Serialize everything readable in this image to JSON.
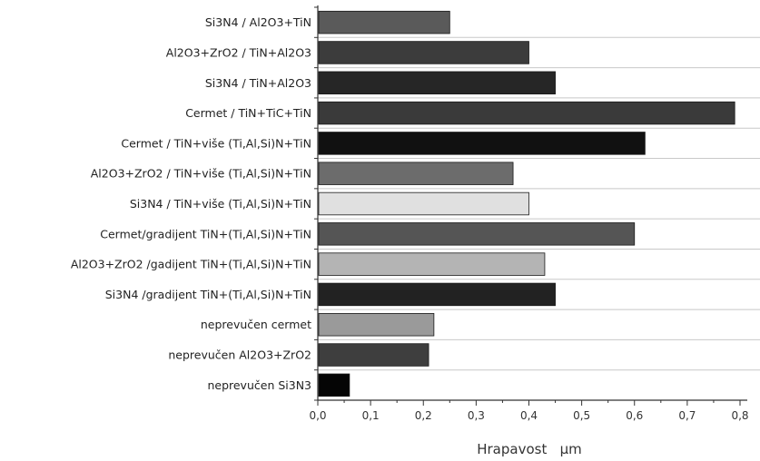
{
  "chart_data": {
    "type": "bar",
    "orientation": "horizontal",
    "title": "",
    "xlabel": "Hrapavost   μm",
    "ylabel": "",
    "xlim": [
      0,
      0.8
    ],
    "x_ticks": [
      "0,0",
      "0,1",
      "0,2",
      "0,3",
      "0,4",
      "0,5",
      "0,6",
      "0,7",
      "0,8"
    ],
    "grid": "horizontal lines between categories",
    "legend": "none",
    "categories": [
      "Si3N4 / Al2O3+TiN",
      "Al2O3+ZrO2 / TiN+Al2O3",
      "Si3N4 / TiN+Al2O3",
      "Cermet / TiN+TiC+TiN",
      "Cermet  / TiN+više  (Ti,Al,Si)N+TiN",
      "Al2O3+ZrO2 / TiN+više (Ti,Al,Si)N+TiN",
      "Si3N4 / TiN+više  (Ti,Al,Si)N+TiN",
      "Cermet/gradijent TiN+(Ti,Al,Si)N+TiN",
      "Al2O3+ZrO2 /gadijent TiN+(Ti,Al,Si)N+TiN",
      "Si3N4 /gradijent TiN+(Ti,Al,Si)N+TiN",
      "neprevučen   cermet",
      "neprevučen Al2O3+ZrO2",
      "neprevučen Si3N3"
    ],
    "values": [
      0.25,
      0.4,
      0.45,
      0.79,
      0.62,
      0.37,
      0.4,
      0.6,
      0.43,
      0.45,
      0.22,
      0.21,
      0.06
    ],
    "colors": [
      "#5a5a5a",
      "#3c3c3c",
      "#262626",
      "#3a3a3a",
      "#111111",
      "#6c6c6c",
      "#e0e0e0",
      "#555555",
      "#b4b4b4",
      "#222222",
      "#9a9a9a",
      "#3e3e3e",
      "#050505"
    ]
  }
}
